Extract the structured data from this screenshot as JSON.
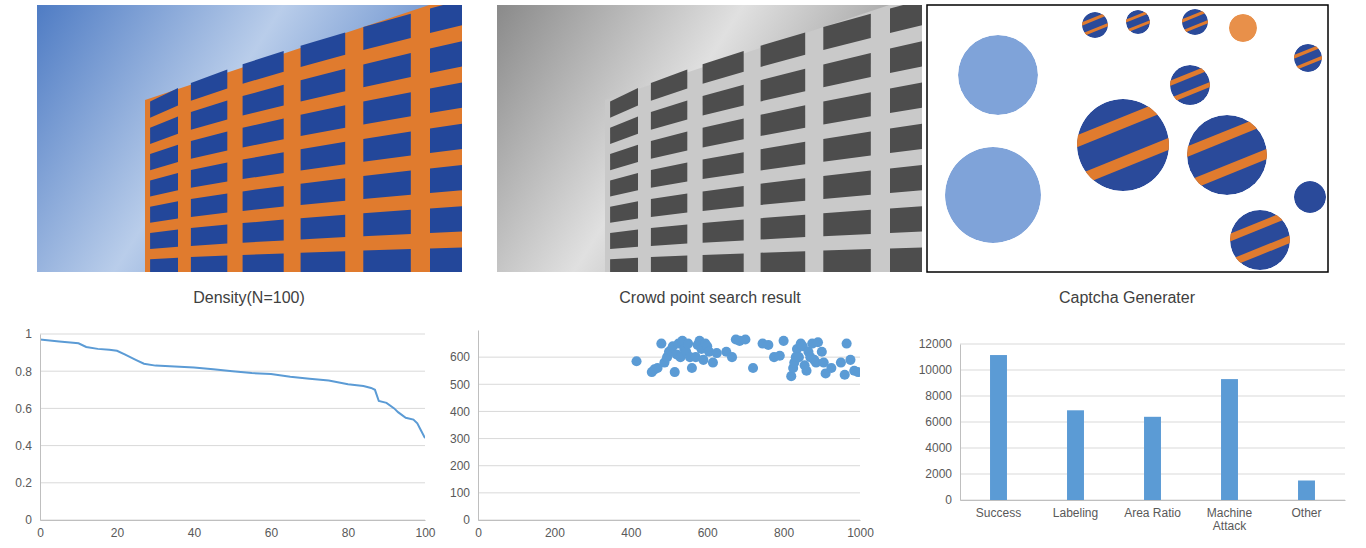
{
  "chart_data": [
    {
      "type": "line",
      "title": "Density(N=100)",
      "x": [
        0,
        5,
        10,
        12,
        15,
        18,
        20,
        22,
        25,
        27,
        30,
        35,
        40,
        45,
        50,
        55,
        60,
        65,
        70,
        75,
        80,
        84,
        86,
        87,
        88,
        90,
        92,
        93,
        95,
        97,
        98,
        99,
        100
      ],
      "values": [
        0.97,
        0.96,
        0.95,
        0.93,
        0.92,
        0.915,
        0.91,
        0.89,
        0.86,
        0.84,
        0.83,
        0.825,
        0.82,
        0.81,
        0.8,
        0.79,
        0.785,
        0.77,
        0.76,
        0.75,
        0.73,
        0.72,
        0.71,
        0.7,
        0.64,
        0.63,
        0.6,
        0.58,
        0.55,
        0.54,
        0.52,
        0.48,
        0.44
      ],
      "color": "#5b9bd5",
      "xlim": [
        0,
        100
      ],
      "xticks": [
        0,
        20,
        40,
        60,
        80,
        100
      ],
      "ylim": [
        0,
        1
      ],
      "yticks": [
        0,
        0.2,
        0.4,
        0.6,
        0.8,
        1
      ],
      "grid": true
    },
    {
      "type": "scatter",
      "title": "Crowd point search result",
      "x": [
        415,
        455,
        462,
        470,
        480,
        488,
        495,
        500,
        505,
        510,
        515,
        520,
        525,
        530,
        535,
        540,
        545,
        550,
        555,
        560,
        570,
        575,
        580,
        585,
        590,
        595,
        600,
        605,
        615,
        625,
        650,
        665,
        675,
        685,
        700,
        720,
        745,
        760,
        775,
        790,
        800,
        820,
        825,
        828,
        832,
        835,
        840,
        845,
        850,
        855,
        860,
        865,
        870,
        875,
        880,
        885,
        890,
        900,
        905,
        910,
        925,
        950,
        960,
        965,
        975,
        985,
        995
      ],
      "values": [
        585,
        545,
        555,
        560,
        650,
        580,
        600,
        620,
        625,
        640,
        545,
        610,
        650,
        600,
        660,
        630,
        620,
        650,
        600,
        560,
        600,
        645,
        660,
        630,
        590,
        650,
        640,
        620,
        580,
        615,
        620,
        600,
        665,
        660,
        665,
        560,
        650,
        645,
        600,
        605,
        660,
        530,
        560,
        580,
        600,
        630,
        600,
        650,
        640,
        570,
        550,
        620,
        600,
        650,
        590,
        580,
        655,
        620,
        580,
        540,
        560,
        580,
        535,
        650,
        590,
        550,
        545
      ],
      "color": "#5b9bd5",
      "marker": "circle",
      "xlim": [
        0,
        1000
      ],
      "xticks": [
        0,
        200,
        400,
        600,
        800,
        1000
      ],
      "ylim": [
        0,
        700
      ],
      "yticks": [
        0,
        100,
        200,
        300,
        400,
        500,
        600
      ],
      "grid": true
    },
    {
      "type": "bar",
      "title": "Captcha Generater",
      "categories": [
        "Success",
        "Labeling",
        "Area Ratio",
        "Machine Attack",
        "Other"
      ],
      "values": [
        11150,
        6900,
        6400,
        9300,
        1500
      ],
      "color": "#5b9bd5",
      "ylim": [
        0,
        12000
      ],
      "yticks": [
        0,
        2000,
        4000,
        6000,
        8000,
        10000,
        12000
      ],
      "grid": true
    }
  ]
}
